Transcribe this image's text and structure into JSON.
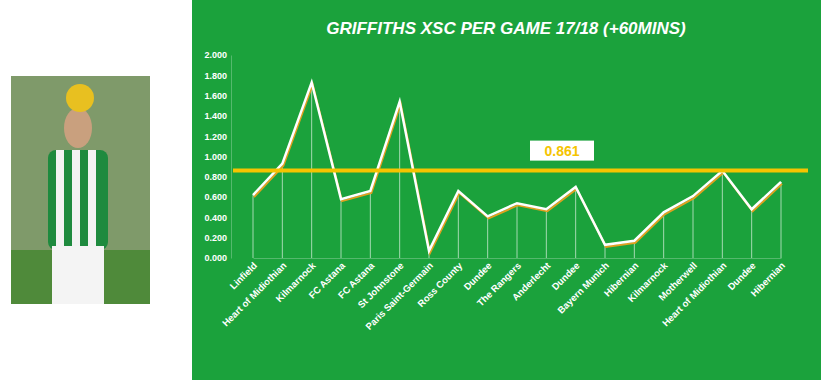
{
  "chart_data": {
    "type": "line",
    "title": "GRIFFITHS XSC PER GAME 17/18 (+60MINS)",
    "categories": [
      "Linfield",
      "Heart of Midiothian",
      "Kilmarnock",
      "FC Astana",
      "FC Astana",
      "St Johnstone",
      "Paris Saint-Germain",
      "Ross County",
      "Dundee",
      "The Rangers",
      "Anderlecht",
      "Dundee",
      "Bayern Munich",
      "Hibernian",
      "Kilmarnock",
      "Motherwell",
      "Heart of Midiothian",
      "Dundee",
      "Hibernian"
    ],
    "values": [
      0.62,
      0.93,
      1.73,
      0.58,
      0.66,
      1.54,
      0.07,
      0.66,
      0.41,
      0.54,
      0.48,
      0.7,
      0.13,
      0.17,
      0.45,
      0.61,
      0.86,
      0.48,
      0.75
    ],
    "color": "#ffffff",
    "ylim": [
      0,
      2
    ],
    "yticks": [
      {
        "value": 0,
        "label": "0.000"
      },
      {
        "value": 0.2,
        "label": "0.200"
      },
      {
        "value": 0.4,
        "label": "0.400"
      },
      {
        "value": 0.6,
        "label": "0.600"
      },
      {
        "value": 0.8,
        "label": "0.800"
      },
      {
        "value": 1,
        "label": "1.000"
      },
      {
        "value": 1.2,
        "label": "1.200"
      },
      {
        "value": 1.4,
        "label": "1.400"
      },
      {
        "value": 1.6,
        "label": "1.600"
      },
      {
        "value": 1.8,
        "label": "1.800"
      },
      {
        "value": 2,
        "label": "2.000"
      }
    ],
    "grid": false,
    "reference_line": {
      "value": 0.861,
      "label": "0.861",
      "color": "#f5c400"
    }
  }
}
